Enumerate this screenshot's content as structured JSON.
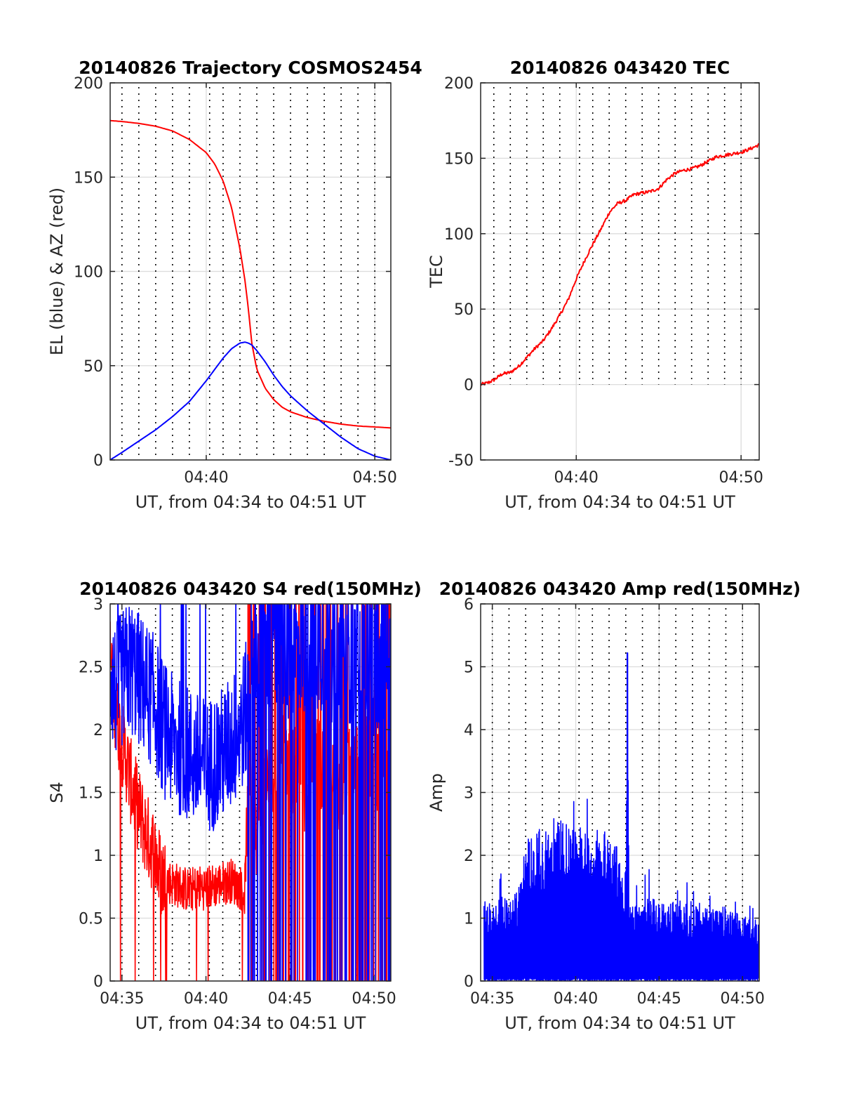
{
  "colors": {
    "red": "#ff0000",
    "blue": "#0000ff",
    "axis": "#262626",
    "grid": "#dcdcdc",
    "marker_lines": "#000000"
  },
  "chart_data": [
    {
      "id": "trajectory",
      "type": "line",
      "title": "20140826 Trajectory COSMOS2454",
      "xlabel": "UT, from 04:34 to 04:51 UT",
      "ylabel": "EL (blue) & AZ (red)",
      "xlim": [
        34.3,
        50.95
      ],
      "ylim": [
        0,
        200
      ],
      "xticks": [
        {
          "v": 40,
          "label": "04:40"
        },
        {
          "v": 50,
          "label": "04:50"
        }
      ],
      "yticks": [
        {
          "v": 0,
          "label": "0"
        },
        {
          "v": 50,
          "label": "50"
        },
        {
          "v": 100,
          "label": "100"
        },
        {
          "v": 150,
          "label": "150"
        },
        {
          "v": 200,
          "label": "200"
        }
      ],
      "grid": true,
      "marker_lines": [
        35.0,
        36.0,
        37.0,
        38.0,
        39.0,
        40.2,
        41.0,
        42.0,
        43.0,
        44.0,
        45.0,
        46.0,
        47.0,
        48.0,
        49.0,
        50.0
      ],
      "series": [
        {
          "color": "red",
          "x": [
            34.3,
            35,
            36,
            37,
            38,
            39,
            40,
            40.5,
            41,
            41.5,
            42,
            42.3,
            42.5,
            42.7,
            43,
            43.5,
            44,
            44.5,
            45,
            46,
            47,
            48,
            49,
            50,
            50.95
          ],
          "y": [
            180,
            179.5,
            178.5,
            177,
            174.5,
            170,
            163,
            157,
            148,
            134,
            112,
            95,
            80,
            62,
            48,
            38,
            32,
            28,
            25.5,
            22.5,
            20.5,
            19,
            18,
            17.5,
            17
          ]
        },
        {
          "color": "blue",
          "x": [
            34.3,
            35,
            36,
            37,
            38,
            39,
            40,
            40.5,
            41,
            41.5,
            42,
            42.3,
            42.5,
            42.7,
            43,
            43.5,
            44,
            44.5,
            45,
            46,
            47,
            48,
            49,
            50,
            50.95
          ],
          "y": [
            0,
            4,
            10,
            16,
            23,
            31,
            42,
            48,
            54,
            59,
            62,
            62.5,
            62,
            61,
            58,
            52,
            45,
            39,
            34,
            26,
            19,
            12,
            6,
            2,
            0
          ]
        }
      ]
    },
    {
      "id": "tec",
      "type": "line",
      "title": "20140826 043420 TEC",
      "xlabel": "UT, from 04:34 to 04:51 UT",
      "ylabel": "TEC",
      "xlim": [
        34.2,
        51.1
      ],
      "ylim": [
        -50,
        200
      ],
      "xticks": [
        {
          "v": 40,
          "label": "04:40"
        },
        {
          "v": 50,
          "label": "04:50"
        }
      ],
      "yticks": [
        {
          "v": -50,
          "label": "-50"
        },
        {
          "v": 0,
          "label": "0"
        },
        {
          "v": 50,
          "label": "50"
        },
        {
          "v": 100,
          "label": "100"
        },
        {
          "v": 150,
          "label": "150"
        },
        {
          "v": 200,
          "label": "200"
        }
      ],
      "grid": true,
      "marker_lines": [
        35.0,
        36.0,
        37.0,
        38.0,
        39.0,
        40.2,
        41.0,
        42.0,
        43.0,
        44.0,
        45.0,
        46.0,
        47.0,
        48.0,
        49.0,
        50.0
      ],
      "series": [
        {
          "color": "red",
          "x": [
            34.2,
            34.6,
            35,
            35.5,
            36,
            36.5,
            37,
            37.5,
            38,
            38.5,
            39,
            39.5,
            40,
            40.5,
            41,
            41.5,
            42,
            42.5,
            43,
            43.5,
            44,
            44.5,
            45,
            45.5,
            46,
            46.5,
            47,
            47.5,
            48,
            48.5,
            49,
            49.5,
            50,
            50.5,
            51.1
          ],
          "y": [
            0,
            1,
            3,
            7,
            8,
            12,
            18,
            24,
            29,
            37,
            46,
            56,
            70,
            82,
            93,
            103,
            114,
            120,
            122,
            126,
            127,
            128,
            130,
            136,
            140,
            142,
            143,
            145,
            148,
            151,
            152,
            153,
            154,
            156,
            159
          ]
        }
      ]
    },
    {
      "id": "s4",
      "type": "line",
      "title": "20140826 043420 S4 red(150MHz)",
      "xlabel": "UT, from 04:34 to 04:51 UT",
      "ylabel": "S4",
      "xlim": [
        34.3,
        51.0
      ],
      "ylim": [
        0,
        3
      ],
      "xticks": [
        {
          "v": 35,
          "label": "04:35"
        },
        {
          "v": 40,
          "label": "04:40"
        },
        {
          "v": 45,
          "label": "04:45"
        },
        {
          "v": 50,
          "label": "04:50"
        }
      ],
      "yticks": [
        {
          "v": 0,
          "label": "0"
        },
        {
          "v": 0.5,
          "label": "0.5"
        },
        {
          "v": 1,
          "label": "1"
        },
        {
          "v": 1.5,
          "label": "1.5"
        },
        {
          "v": 2,
          "label": "2"
        },
        {
          "v": 2.5,
          "label": "2.5"
        },
        {
          "v": 3,
          "label": "3"
        }
      ],
      "grid": true,
      "marker_lines": [
        35.0,
        36.0,
        37.0,
        38.0,
        39.0,
        40.2,
        41.0,
        42.0,
        43.0,
        44.0,
        45.0,
        46.0,
        47.0,
        48.0,
        49.0,
        50.0
      ],
      "series": [
        {
          "color": "red",
          "x": [
            34.3,
            34.5,
            34.7,
            34.9,
            35.2,
            35.5,
            36,
            36.5,
            37,
            37.3,
            37.6,
            38,
            38.5,
            39,
            39.5,
            40,
            40.5,
            41,
            41.5,
            42,
            42.3,
            42.6,
            43,
            43.5,
            44,
            44.5,
            45,
            45.5,
            46,
            46.5,
            47,
            47.5,
            48,
            48.5,
            49,
            49.5,
            50,
            50.5,
            50.95
          ],
          "y": [
            2.6,
            2.3,
            2.1,
            1.95,
            1.8,
            1.6,
            1.35,
            1.15,
            1.0,
            0.85,
            0.8,
            0.78,
            0.75,
            0.72,
            0.75,
            0.74,
            0.76,
            0.78,
            0.8,
            0.75,
            0.7,
            1.8,
            1.2,
            1.5,
            1.7,
            1.9,
            1.6,
            1.8,
            1.4,
            2.0,
            1.6,
            1.8,
            1.5,
            1.9,
            1.7,
            1.8,
            1.6,
            1.7,
            1.5
          ]
        },
        {
          "color": "blue",
          "x": [
            34.3,
            34.6,
            35,
            35.5,
            36,
            36.5,
            37,
            37.5,
            38,
            38.5,
            39,
            39.5,
            40,
            40.5,
            41,
            41.5,
            42,
            42.5,
            43,
            43.5,
            44,
            44.5,
            45,
            45.5,
            46,
            46.5,
            47,
            47.5,
            48,
            48.5,
            49,
            49.5,
            50,
            50.5,
            50.95
          ],
          "y": [
            2.5,
            2.3,
            2.4,
            2.5,
            2.4,
            2.3,
            2.2,
            2.0,
            1.9,
            1.85,
            1.8,
            1.75,
            1.7,
            1.75,
            1.8,
            1.9,
            2.0,
            2.2,
            2.5,
            2.6,
            2.7,
            2.65,
            2.6,
            2.7,
            2.6,
            2.65,
            2.7,
            2.6,
            2.5,
            2.6,
            2.55,
            2.6,
            2.5,
            2.6,
            2.5
          ]
        }
      ]
    },
    {
      "id": "amp",
      "type": "line",
      "title": "20140826 043420 Amp red(150MHz)",
      "xlabel": "UT, from 04:34 to 04:51 UT",
      "ylabel": "Amp",
      "xlim": [
        34.3,
        51.0
      ],
      "ylim": [
        0,
        6
      ],
      "xticks": [
        {
          "v": 35,
          "label": "04:35"
        },
        {
          "v": 40,
          "label": "04:40"
        },
        {
          "v": 45,
          "label": "04:45"
        },
        {
          "v": 50,
          "label": "04:50"
        }
      ],
      "yticks": [
        {
          "v": 0,
          "label": "0"
        },
        {
          "v": 1,
          "label": "1"
        },
        {
          "v": 2,
          "label": "2"
        },
        {
          "v": 3,
          "label": "3"
        },
        {
          "v": 4,
          "label": "4"
        },
        {
          "v": 5,
          "label": "5"
        },
        {
          "v": 6,
          "label": "6"
        }
      ],
      "grid": true,
      "marker_lines": [
        35.0,
        36.0,
        37.0,
        38.0,
        39.0,
        40.2,
        41.0,
        42.0,
        43.0,
        44.0,
        45.0,
        46.0,
        47.0,
        48.0,
        49.0,
        50.0
      ],
      "series": [
        {
          "color": "blue",
          "x": [
            34.5,
            35,
            35.5,
            36,
            36.5,
            37,
            37.5,
            38,
            38.5,
            39,
            39.5,
            40,
            40.5,
            41,
            41.5,
            42,
            42.5,
            43,
            43.1,
            43.2,
            43.5,
            44,
            44.5,
            45,
            45.5,
            46,
            46.5,
            47,
            47.5,
            48,
            48.5,
            49,
            49.5,
            50,
            50.5,
            50.95
          ],
          "y": [
            1.3,
            1.25,
            1.35,
            1.3,
            1.5,
            2.3,
            2.4,
            2.5,
            2.4,
            2.6,
            2.5,
            2.4,
            2.6,
            2.5,
            2.4,
            2.5,
            2.2,
            1.3,
            5.2,
            1.2,
            1.25,
            1.2,
            1.3,
            1.25,
            1.2,
            1.3,
            1.25,
            1.2,
            1.25,
            1.2,
            1.15,
            1.2,
            1.1,
            1.05,
            1.0,
            1.0
          ]
        }
      ]
    }
  ]
}
